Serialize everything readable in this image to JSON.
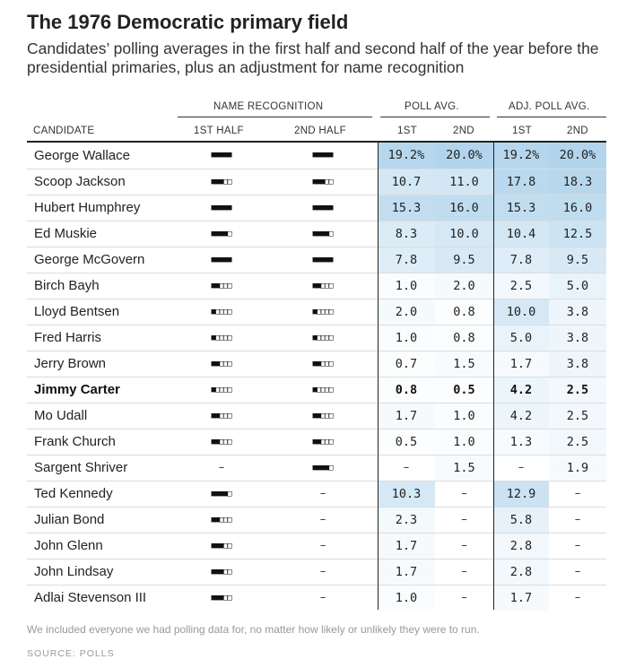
{
  "title": "The 1976 Democratic primary field",
  "subtitle": "Candidates’ polling averages in the first half and second half of the year before the presidential primaries, plus an adjustment for name recognition",
  "headers": {
    "group_name_recognition": "NAME RECOGNITION",
    "group_poll_avg": "POLL AVG.",
    "group_adj_poll_avg": "ADJ. POLL AVG.",
    "candidate": "CANDIDATE",
    "recog_1": "1ST HALF",
    "recog_2": "2ND HALF",
    "poll_1": "1ST",
    "poll_2": "2ND",
    "adj_1": "1ST",
    "adj_2": "2ND"
  },
  "colors": {
    "max_shade": "#c6dff0",
    "text": "#222222",
    "rule": "#222222"
  },
  "rows": [
    {
      "name": "George Wallace",
      "recog1": 5,
      "recog2": 5,
      "poll1": "19.2%",
      "poll2": "20.0%",
      "adj1": "19.2%",
      "adj2": "20.0%",
      "bold": false
    },
    {
      "name": "Scoop Jackson",
      "recog1": 3,
      "recog2": 3,
      "poll1": "10.7",
      "poll2": "11.0",
      "adj1": "17.8",
      "adj2": "18.3",
      "bold": false
    },
    {
      "name": "Hubert Humphrey",
      "recog1": 5,
      "recog2": 5,
      "poll1": "15.3",
      "poll2": "16.0",
      "adj1": "15.3",
      "adj2": "16.0",
      "bold": false
    },
    {
      "name": "Ed Muskie",
      "recog1": 4,
      "recog2": 4,
      "poll1": "8.3",
      "poll2": "10.0",
      "adj1": "10.4",
      "adj2": "12.5",
      "bold": false
    },
    {
      "name": "George McGovern",
      "recog1": 5,
      "recog2": 5,
      "poll1": "7.8",
      "poll2": "9.5",
      "adj1": "7.8",
      "adj2": "9.5",
      "bold": false
    },
    {
      "name": "Birch Bayh",
      "recog1": 2,
      "recog2": 2,
      "poll1": "1.0",
      "poll2": "2.0",
      "adj1": "2.5",
      "adj2": "5.0",
      "bold": false
    },
    {
      "name": "Lloyd Bentsen",
      "recog1": 1,
      "recog2": 1,
      "poll1": "2.0",
      "poll2": "0.8",
      "adj1": "10.0",
      "adj2": "3.8",
      "bold": false
    },
    {
      "name": "Fred Harris",
      "recog1": 1,
      "recog2": 1,
      "poll1": "1.0",
      "poll2": "0.8",
      "adj1": "5.0",
      "adj2": "3.8",
      "bold": false
    },
    {
      "name": "Jerry Brown",
      "recog1": 2,
      "recog2": 2,
      "poll1": "0.7",
      "poll2": "1.5",
      "adj1": "1.7",
      "adj2": "3.8",
      "bold": false
    },
    {
      "name": "Jimmy Carter",
      "recog1": 1,
      "recog2": 1,
      "poll1": "0.8",
      "poll2": "0.5",
      "adj1": "4.2",
      "adj2": "2.5",
      "bold": true
    },
    {
      "name": "Mo Udall",
      "recog1": 2,
      "recog2": 2,
      "poll1": "1.7",
      "poll2": "1.0",
      "adj1": "4.2",
      "adj2": "2.5",
      "bold": false
    },
    {
      "name": "Frank Church",
      "recog1": 2,
      "recog2": 2,
      "poll1": "0.5",
      "poll2": "1.0",
      "adj1": "1.3",
      "adj2": "2.5",
      "bold": false
    },
    {
      "name": "Sargent Shriver",
      "recog1": null,
      "recog2": 4,
      "poll1": null,
      "poll2": "1.5",
      "adj1": null,
      "adj2": "1.9",
      "bold": false
    },
    {
      "name": "Ted Kennedy",
      "recog1": 4,
      "recog2": null,
      "poll1": "10.3",
      "poll2": null,
      "adj1": "12.9",
      "adj2": null,
      "bold": false
    },
    {
      "name": "Julian Bond",
      "recog1": 2,
      "recog2": null,
      "poll1": "2.3",
      "poll2": null,
      "adj1": "5.8",
      "adj2": null,
      "bold": false
    },
    {
      "name": "John Glenn",
      "recog1": 3,
      "recog2": null,
      "poll1": "1.7",
      "poll2": null,
      "adj1": "2.8",
      "adj2": null,
      "bold": false
    },
    {
      "name": "John Lindsay",
      "recog1": 3,
      "recog2": null,
      "poll1": "1.7",
      "poll2": null,
      "adj1": "2.8",
      "adj2": null,
      "bold": false
    },
    {
      "name": "Adlai Stevenson III",
      "recog1": 3,
      "recog2": null,
      "poll1": "1.0",
      "poll2": null,
      "adj1": "1.7",
      "adj2": null,
      "bold": false
    }
  ],
  "footnote": "We included everyone we had polling data for, no matter how likely or unlikely they were to run.",
  "source": "SOURCE: POLLS"
}
